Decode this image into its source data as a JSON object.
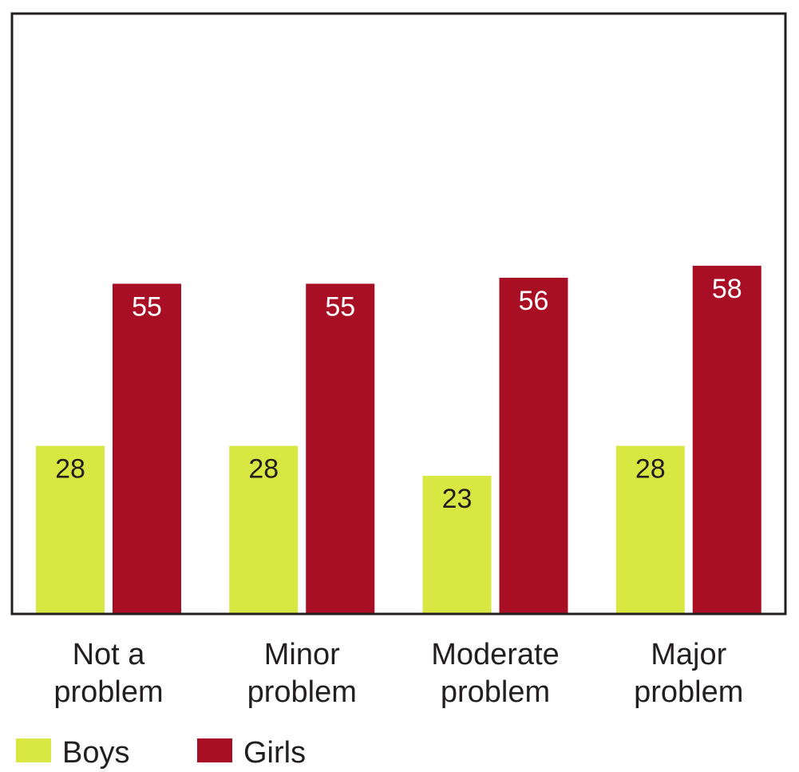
{
  "chart_data": {
    "type": "bar",
    "categories": [
      [
        "Not a",
        "problem"
      ],
      [
        "Minor",
        "problem"
      ],
      [
        "Moderate",
        "problem"
      ],
      [
        "Major",
        "problem"
      ]
    ],
    "series": [
      {
        "name": "Boys",
        "color": "#d9e743",
        "label_color": "#231f20",
        "values": [
          28,
          28,
          23,
          28
        ]
      },
      {
        "name": "Girls",
        "color": "#a80f24",
        "label_color": "#ffffff",
        "values": [
          55,
          55,
          56,
          58
        ]
      }
    ],
    "ylim": [
      0,
      100
    ],
    "grid": false,
    "legend_position": "bottom-left",
    "title": "",
    "xlabel": "",
    "ylabel": ""
  }
}
